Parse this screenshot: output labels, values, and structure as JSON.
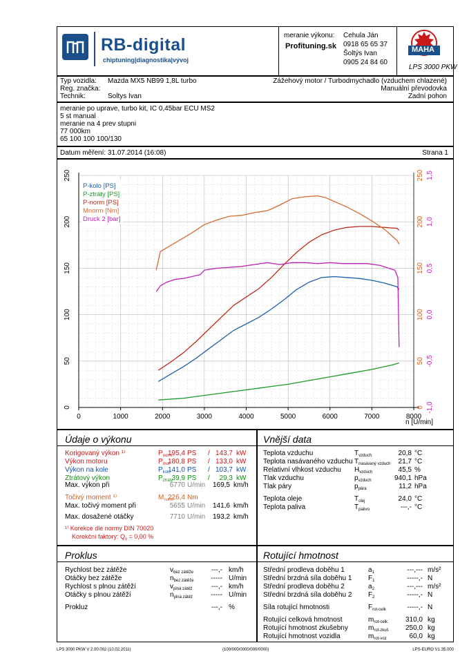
{
  "header": {
    "logo_title": "RB-digital",
    "logo_sub": "chiptuning|diagnostika|vývoj",
    "meranie_label": "meranie výkonu:",
    "shop": "Profituning.sk",
    "contact_lines": [
      "Cehula Ján",
      "0918 65 65 37",
      "Šoltýs Ivan",
      "0905 24 84 60"
    ],
    "maha_label": "MAHA",
    "lps_label": "LPS 3000 PKW"
  },
  "vehicle": {
    "typ_label": "Typ vozidla:",
    "typ_value": "Mazda MX5 NB99 1,8L turbo",
    "reg_label": "Reg. značka:",
    "tech_label": "Technik:",
    "tech_value": "Soltys Ivan",
    "engine": "Zážehový motor / Turbodmychadlo (vzduchem chlazené)",
    "gearbox": "Manuální převodovka",
    "drive": "Zadní pohon"
  },
  "notes": [
    "meranie po uprave, turbo kit, IC 0,45bar ECU MS2",
    "5 st manual",
    "meranie na 4 prev stupni",
    "77 000km",
    "65 100 100 100/130"
  ],
  "date_line": "Datum měření: 31.07.2014 (16:08)",
  "page_label": "Strana 1",
  "chart_data": {
    "type": "line",
    "xlabel": "n [U/min]",
    "xlim": [
      0,
      8000
    ],
    "xticks": [
      "0",
      "1000",
      "2000",
      "3000",
      "4000",
      "5000",
      "6000",
      "7000",
      "8000"
    ],
    "ylim_left": [
      0,
      250
    ],
    "yticks_left": [
      "0",
      "50",
      "100",
      "150",
      "200",
      "250"
    ],
    "yticks_right_orange": [
      "0",
      "50",
      "100",
      "150",
      "200",
      "250"
    ],
    "yticks_right_pink": [
      "-1,0",
      "-0,5",
      "0,0",
      "0,5",
      "1,0",
      "1,5"
    ],
    "legend": [
      "P-kolo [PS]",
      "P-ztráty [PS]",
      "P-norm [PS]",
      "Mnorm [Nm]",
      "Druck 2 [bar]"
    ],
    "series": [
      {
        "name": "P-kolo [PS]",
        "color": "#1c5fb0",
        "x": [
          1900,
          2200,
          2500,
          2800,
          3100,
          3400,
          3700,
          4000,
          4300,
          4600,
          4900,
          5200,
          5500,
          5800,
          6100,
          6400,
          6700,
          7000,
          7300,
          7600,
          7650
        ],
        "y": [
          28,
          36,
          44,
          53,
          63,
          73,
          83,
          90,
          97,
          106,
          116,
          127,
          135,
          140,
          141,
          140,
          139,
          137,
          134,
          130,
          127
        ]
      },
      {
        "name": "P-ztráty [PS]",
        "color": "#189a28",
        "x": [
          1900,
          2500,
          3000,
          3500,
          4000,
          4500,
          5000,
          5500,
          6000,
          6500,
          7000,
          7500,
          7650
        ],
        "y": [
          8,
          10,
          13,
          16,
          19,
          22,
          25,
          29,
          33,
          37,
          41,
          46,
          48
        ]
      },
      {
        "name": "P-norm [PS]",
        "color": "#c02818",
        "x": [
          1900,
          2200,
          2500,
          2800,
          3100,
          3400,
          3700,
          4000,
          4300,
          4600,
          4900,
          5200,
          5500,
          5800,
          6100,
          6400,
          6700,
          7000,
          7300,
          7600,
          7650
        ],
        "y": [
          40,
          49,
          59,
          71,
          84,
          97,
          110,
          119,
          128,
          140,
          154,
          167,
          178,
          186,
          191,
          194,
          195,
          195,
          194,
          193,
          191
        ]
      },
      {
        "name": "Mnorm [Nm]",
        "color": "#d86a30",
        "x": [
          1850,
          1950,
          2100,
          2400,
          2700,
          3000,
          3300,
          3600,
          3900,
          4200,
          4500,
          4800,
          5100,
          5400,
          5700,
          5900,
          6100,
          6400,
          6700,
          7000,
          7300,
          7600,
          7650
        ],
        "y": [
          148,
          168,
          172,
          180,
          188,
          197,
          202,
          206,
          207,
          210,
          212,
          218,
          225,
          227,
          228,
          226,
          222,
          216,
          209,
          201,
          192,
          180,
          176
        ]
      },
      {
        "name": "Druck 2 [bar]",
        "color": "#c020b8",
        "x": [
          1850,
          1950,
          2100,
          2300,
          2500,
          2700,
          2900,
          3000,
          3300,
          3600,
          3900,
          4200,
          4500,
          4800,
          5100,
          5400,
          5700,
          6000,
          6300,
          6600,
          6900,
          7200,
          7400,
          7550,
          7620,
          7650
        ],
        "y": [
          0.25,
          0.31,
          0.35,
          0.38,
          0.39,
          0.41,
          0.43,
          0.48,
          0.5,
          0.51,
          0.52,
          0.54,
          0.56,
          0.54,
          0.56,
          0.56,
          0.55,
          0.56,
          0.55,
          0.55,
          0.55,
          0.53,
          0.5,
          0.48,
          0.4,
          -0.35
        ]
      }
    ]
  },
  "vykon": {
    "title": "Údaje o výkonu",
    "rows": [
      {
        "label": "Korigovaný výkon ¹⁾",
        "sym": "P",
        "sub": "norm",
        "v1": "195,4",
        "u1": "PS",
        "sep": "/",
        "v2": "143,7",
        "u2": "kW",
        "cls": "red"
      },
      {
        "label": "Výkon motoru",
        "sym": "P",
        "sub": "mot",
        "v1": "180,8",
        "u1": "PS",
        "sep": "/",
        "v2": "133,0",
        "u2": "kW",
        "cls": "red"
      },
      {
        "label": "Výkon na kole",
        "sym": "P",
        "sub": "kolo",
        "v1": "141,0",
        "u1": "PS",
        "sep": "/",
        "v2": "103,7",
        "u2": "kW",
        "cls": "blue"
      },
      {
        "label": "Ztrátový výkon",
        "sym": "P",
        "sub": "ztráty",
        "v1": "39,9",
        "u1": "PS",
        "sep": "/",
        "v2": "29,3",
        "u2": "kW",
        "cls": "green"
      }
    ],
    "max_vykon_label": "Max. výkon při",
    "max_vykon_rpm": "6770",
    "max_vykon_unit": "U/min",
    "max_vykon_kmh": "169,5",
    "kmh": "km/h",
    "torque_label": "Točivý moment ¹⁾",
    "torque_sym": "M",
    "torque_sub": "norm",
    "torque_value": "226,4",
    "torque_unit": "Nm",
    "max_torque_label": "Max. točivý moment při",
    "max_torque_rpm": "5655",
    "max_torque_kmh": "141,6",
    "max_rpm_label": "Max. dosažené otáčky",
    "max_rpm": "7710",
    "max_rpm_kmh": "193,2",
    "norm_note": "¹⁾ Korekce dle normy DIN 70020",
    "factor_note": "Korekční faktory: Q",
    "factor_sub": "v",
    "factor_value": " = 0,00 %"
  },
  "vnejsi": {
    "title": "Vnější data",
    "rows": [
      {
        "label": "Teplota vzduchu",
        "sym": "T",
        "sub": "vzduch",
        "v": "20,8",
        "u": "°C"
      },
      {
        "label": "Teplota nasávaného vzduchu",
        "sym": "T",
        "sub": "nasávaný vzduch",
        "v": "21,7",
        "u": "°C"
      },
      {
        "label": "Relativní vlhkost vzduchu",
        "sym": "H",
        "sub": "vzduch",
        "v": "45,5",
        "u": "%"
      },
      {
        "label": "Tlak vzduchu",
        "sym": "p",
        "sub": "vzduch",
        "v": "940,1",
        "u": "hPa"
      },
      {
        "label": "Tlak páry",
        "sym": "p",
        "sub": "pára",
        "v": "11,2",
        "u": "hPa"
      },
      {
        "label": "Teplota oleje",
        "sym": "T",
        "sub": "olej",
        "v": "24,0",
        "u": "°C"
      },
      {
        "label": "Teplota paliva",
        "sym": "T",
        "sub": "palivo",
        "v": "---,-",
        "u": "°C"
      }
    ]
  },
  "proklus": {
    "title": "Proklus",
    "rows": [
      {
        "label": "Rychlost bez zátěže",
        "sym": "v",
        "sub": "bez zátěže",
        "v": "---,-",
        "u": "km/h"
      },
      {
        "label": "Otáčky bez zátěže",
        "sym": "n",
        "sub": "bez zátěže",
        "v": "-----",
        "u": "U/min"
      },
      {
        "label": "Rychlost s plnou zátěží",
        "sym": "v",
        "sub": "plná zátěž",
        "v": "---,-",
        "u": "km/h"
      },
      {
        "label": "Otáčky s plnou zátěží",
        "sym": "n",
        "sub": "plná zátěž",
        "v": "-----",
        "u": "U/min"
      },
      {
        "label": "Prokluz",
        "sym": "",
        "sub": "",
        "v": "---,-",
        "u": "%"
      }
    ]
  },
  "rotujici": {
    "title": "Rotující hmotnost",
    "rows": [
      {
        "label": "Střední prodleva doběhu 1",
        "sym": "a",
        "sub": "1",
        "v": "---,---",
        "u": "m/s²"
      },
      {
        "label": "Střední brzdná síla doběhu 1",
        "sym": "F",
        "sub": "1",
        "v": "-----,-",
        "u": "N"
      },
      {
        "label": "Střední prodleva doběhu 2",
        "sym": "a",
        "sub": "2",
        "v": "---,---",
        "u": "m/s²"
      },
      {
        "label": "Střední brzdná síla doběhu 2",
        "sym": "F",
        "sub": "2",
        "v": "-----,-",
        "u": "N"
      },
      {
        "label": "Síla rotující hmotnosti",
        "sym": "F",
        "sub": "rot-celk",
        "v": "-----,-",
        "u": "N"
      },
      {
        "label": "Rotující celková hmotnost",
        "sym": "m",
        "sub": "rot-celk",
        "v": "310,0",
        "u": "kg"
      },
      {
        "label": "Rotující hmotnost zkušebny",
        "sym": "m",
        "sub": "rot-zkuš",
        "v": "250,0",
        "u": "kg"
      },
      {
        "label": "Rotující hmotnost vozidla",
        "sym": "m",
        "sub": "rot-voz",
        "v": "60,0",
        "u": "kg"
      }
    ]
  },
  "footer": {
    "left": "LPS 3000 PKW V 2.00.002 (10.02.2011)",
    "center": "(100/000/0000/000/0000)",
    "right": "LPS-EURO V1.35.000"
  }
}
